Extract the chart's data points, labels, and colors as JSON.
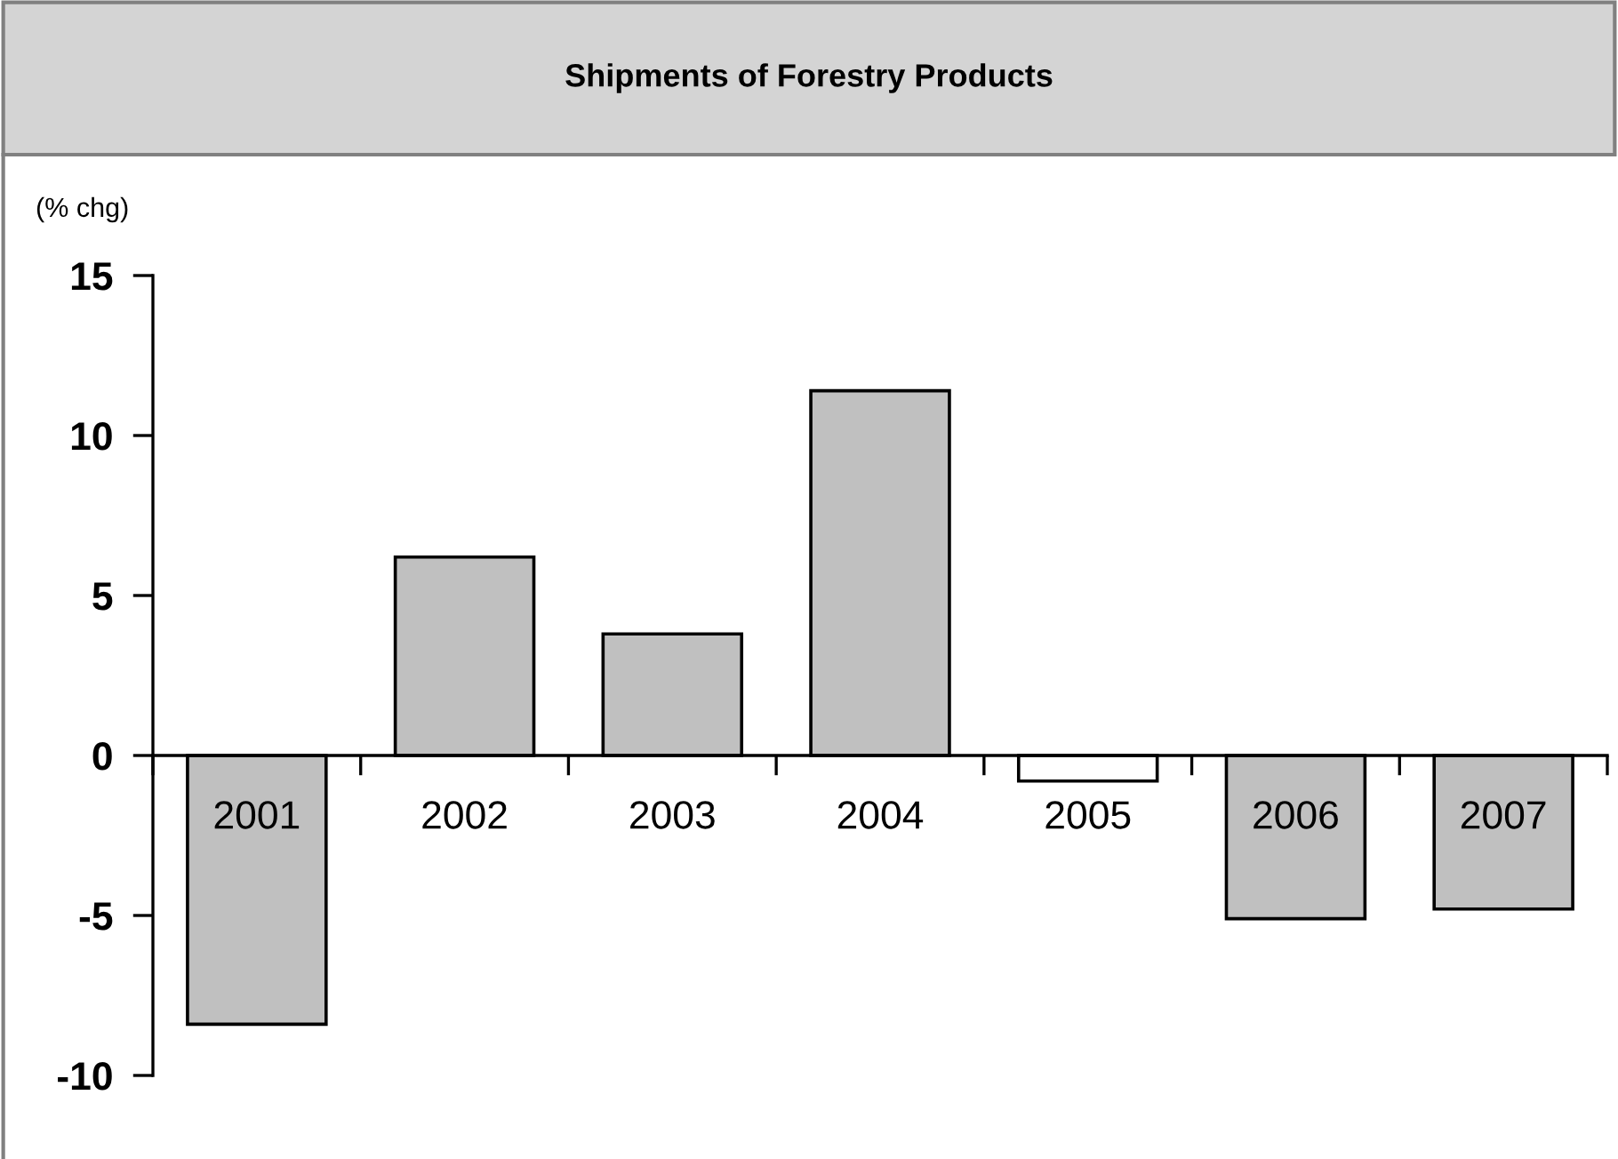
{
  "chart_data": {
    "type": "bar",
    "title": "Shipments of Forestry Products",
    "ylabel": "(% chg)",
    "categories": [
      "2001",
      "2002",
      "2003",
      "2004",
      "2005",
      "2006",
      "2007"
    ],
    "values": [
      -8.4,
      6.2,
      3.8,
      11.4,
      -0.8,
      -5.1,
      -4.8
    ],
    "colors": [
      "#c0c0c0",
      "#c0c0c0",
      "#c0c0c0",
      "#c0c0c0",
      "#ffffff",
      "#c0c0c0",
      "#c0c0c0"
    ],
    "ylim": [
      -10,
      15
    ],
    "yticks": [
      -10,
      -5,
      0,
      5,
      10,
      15
    ],
    "grid": false
  }
}
